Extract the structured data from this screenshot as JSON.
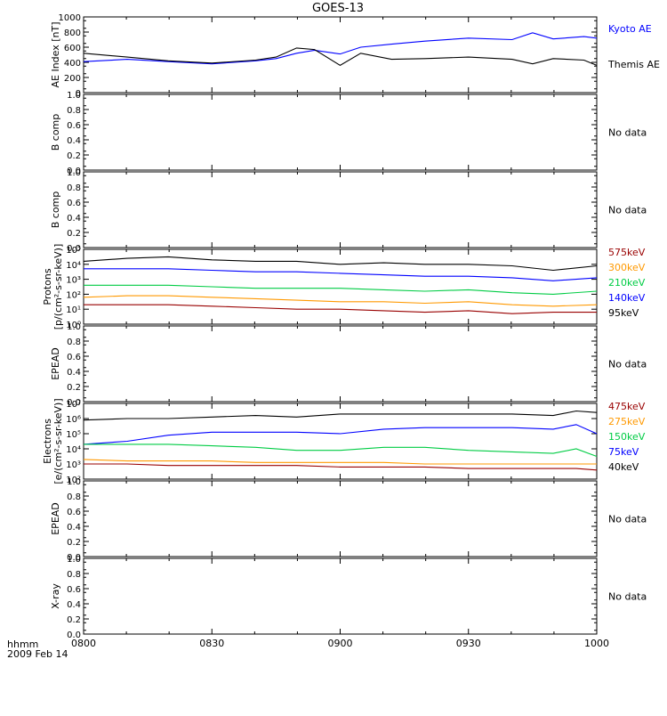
{
  "title": "GOES-13",
  "footer": {
    "line1": "hhmm",
    "line2": "2009 Feb 14"
  },
  "time_axis": {
    "ticks": [
      "0800",
      "0830",
      "0900",
      "0930",
      "1000"
    ],
    "range": [
      "0800",
      "1000"
    ]
  },
  "colors": {
    "frame": "#000000",
    "kyoto": "#0000ff",
    "themis": "#000000",
    "p575": "#990000",
    "p300": "#ff9900",
    "p210": "#00cc44",
    "p140": "#0000ff",
    "p95": "#000000",
    "e475": "#990000",
    "e275": "#ff9900",
    "e150": "#00cc44",
    "e75": "#0000ff",
    "e40": "#000000"
  },
  "chart_data": [
    {
      "id": "ae",
      "type": "line",
      "ylabel": "AE Index [nT]",
      "ylim": [
        0,
        1000
      ],
      "yticks": [
        "0",
        "200",
        "400",
        "600",
        "800",
        "1000"
      ],
      "x_hours": [
        8.0,
        8.17,
        8.33,
        8.5,
        8.67,
        8.75,
        8.83,
        8.9,
        9.0,
        9.08,
        9.2,
        9.33,
        9.5,
        9.67,
        9.75,
        9.83,
        9.95,
        10.0
      ],
      "series": [
        {
          "name": "Kyoto AE",
          "color_key": "kyoto",
          "values": [
            410,
            440,
            410,
            380,
            420,
            450,
            520,
            560,
            510,
            600,
            640,
            680,
            720,
            700,
            790,
            710,
            740,
            720
          ]
        },
        {
          "name": "Themis AE",
          "color_key": "themis",
          "values": [
            520,
            470,
            420,
            390,
            430,
            470,
            590,
            570,
            360,
            520,
            440,
            450,
            470,
            440,
            380,
            450,
            430,
            360
          ]
        }
      ],
      "legend": [
        "Kyoto AE",
        "Themis AE"
      ]
    },
    {
      "id": "bcomp1",
      "type": "line",
      "ylabel": "B comp",
      "ylim": [
        0,
        1
      ],
      "yticks": [
        "0.0",
        "0.2",
        "0.4",
        "0.6",
        "0.8",
        "1.0"
      ],
      "series": [],
      "status": "No data"
    },
    {
      "id": "bcomp2",
      "type": "line",
      "ylabel": "B comp",
      "ylim": [
        0,
        1
      ],
      "yticks": [
        "0.0",
        "0.2",
        "0.4",
        "0.6",
        "0.8",
        "1.0"
      ],
      "series": [],
      "status": "No data"
    },
    {
      "id": "protons",
      "type": "line",
      "ylabel": "Protons",
      "yunits": "[p/(cm²-s-sr-keV)]",
      "yscale": "log",
      "ylim_log10": [
        0,
        5
      ],
      "yticks": [
        "10⁰",
        "10¹",
        "10²",
        "10³",
        "10⁴",
        "10⁵"
      ],
      "x_hours": [
        8.0,
        8.17,
        8.33,
        8.5,
        8.67,
        8.83,
        9.0,
        9.17,
        9.33,
        9.5,
        9.67,
        9.83,
        10.0
      ],
      "series": [
        {
          "name": "95keV",
          "color_key": "p95",
          "log10_values": [
            4.2,
            4.4,
            4.5,
            4.3,
            4.2,
            4.2,
            4.0,
            4.1,
            4.0,
            4.0,
            3.9,
            3.6,
            3.9
          ]
        },
        {
          "name": "140keV",
          "color_key": "p140",
          "log10_values": [
            3.7,
            3.7,
            3.7,
            3.6,
            3.5,
            3.5,
            3.4,
            3.3,
            3.2,
            3.2,
            3.1,
            2.9,
            3.1
          ]
        },
        {
          "name": "210keV",
          "color_key": "p210",
          "log10_values": [
            2.6,
            2.6,
            2.6,
            2.5,
            2.4,
            2.4,
            2.4,
            2.3,
            2.2,
            2.3,
            2.1,
            2.0,
            2.2
          ]
        },
        {
          "name": "300keV",
          "color_key": "p300",
          "log10_values": [
            1.8,
            1.9,
            1.9,
            1.8,
            1.7,
            1.6,
            1.5,
            1.5,
            1.4,
            1.5,
            1.3,
            1.2,
            1.3
          ]
        },
        {
          "name": "575keV",
          "color_key": "p575",
          "log10_values": [
            1.3,
            1.3,
            1.3,
            1.2,
            1.1,
            1.0,
            1.0,
            0.9,
            0.8,
            0.9,
            0.7,
            0.8,
            0.8
          ]
        }
      ],
      "legend": [
        "575keV",
        "300keV",
        "210keV",
        "140keV",
        "95keV"
      ]
    },
    {
      "id": "epead1",
      "type": "line",
      "ylabel": "EPEAD",
      "ylim": [
        0,
        1
      ],
      "yticks": [
        "0.0",
        "0.2",
        "0.4",
        "0.6",
        "0.8",
        "1.0"
      ],
      "series": [],
      "status": "No data"
    },
    {
      "id": "electrons",
      "type": "line",
      "ylabel": "Electrons",
      "yunits": "[e/(cm²-s-sr-keV)]",
      "yscale": "log",
      "ylim_log10": [
        2,
        7
      ],
      "yticks": [
        "10²",
        "10³",
        "10⁴",
        "10⁵",
        "10⁶",
        "10⁷"
      ],
      "x_hours": [
        8.0,
        8.17,
        8.33,
        8.5,
        8.67,
        8.83,
        9.0,
        9.17,
        9.33,
        9.5,
        9.67,
        9.83,
        9.92,
        10.0
      ],
      "series": [
        {
          "name": "40keV",
          "color_key": "e40",
          "log10_values": [
            5.9,
            6.0,
            6.0,
            6.1,
            6.2,
            6.1,
            6.3,
            6.3,
            6.3,
            6.3,
            6.3,
            6.2,
            6.5,
            6.4
          ]
        },
        {
          "name": "75keV",
          "color_key": "e75",
          "log10_values": [
            4.3,
            4.5,
            4.9,
            5.1,
            5.1,
            5.1,
            5.0,
            5.3,
            5.4,
            5.4,
            5.4,
            5.3,
            5.6,
            5.0
          ]
        },
        {
          "name": "150keV",
          "color_key": "e150",
          "log10_values": [
            4.3,
            4.3,
            4.3,
            4.2,
            4.1,
            3.9,
            3.9,
            4.1,
            4.1,
            3.9,
            3.8,
            3.7,
            4.0,
            3.5
          ]
        },
        {
          "name": "275keV",
          "color_key": "e275",
          "log10_values": [
            3.3,
            3.2,
            3.2,
            3.2,
            3.1,
            3.1,
            3.1,
            3.1,
            3.0,
            3.0,
            3.0,
            3.0,
            3.0,
            3.0
          ]
        },
        {
          "name": "475keV",
          "color_key": "e475",
          "log10_values": [
            3.0,
            3.0,
            2.9,
            2.9,
            2.9,
            2.9,
            2.8,
            2.8,
            2.8,
            2.7,
            2.7,
            2.7,
            2.7,
            2.6
          ]
        }
      ],
      "legend": [
        "475keV",
        "275keV",
        "150keV",
        "75keV",
        "40keV"
      ]
    },
    {
      "id": "epead2",
      "type": "line",
      "ylabel": "EPEAD",
      "ylim": [
        0,
        1
      ],
      "yticks": [
        "0.0",
        "0.2",
        "0.4",
        "0.6",
        "0.8",
        "1.0"
      ],
      "series": [],
      "status": "No data"
    },
    {
      "id": "xray",
      "type": "line",
      "ylabel": "X-ray",
      "ylim": [
        0,
        1
      ],
      "yticks": [
        "0.0",
        "0.2",
        "0.4",
        "0.6",
        "0.8",
        "1.0"
      ],
      "series": [],
      "status": "No data"
    }
  ]
}
